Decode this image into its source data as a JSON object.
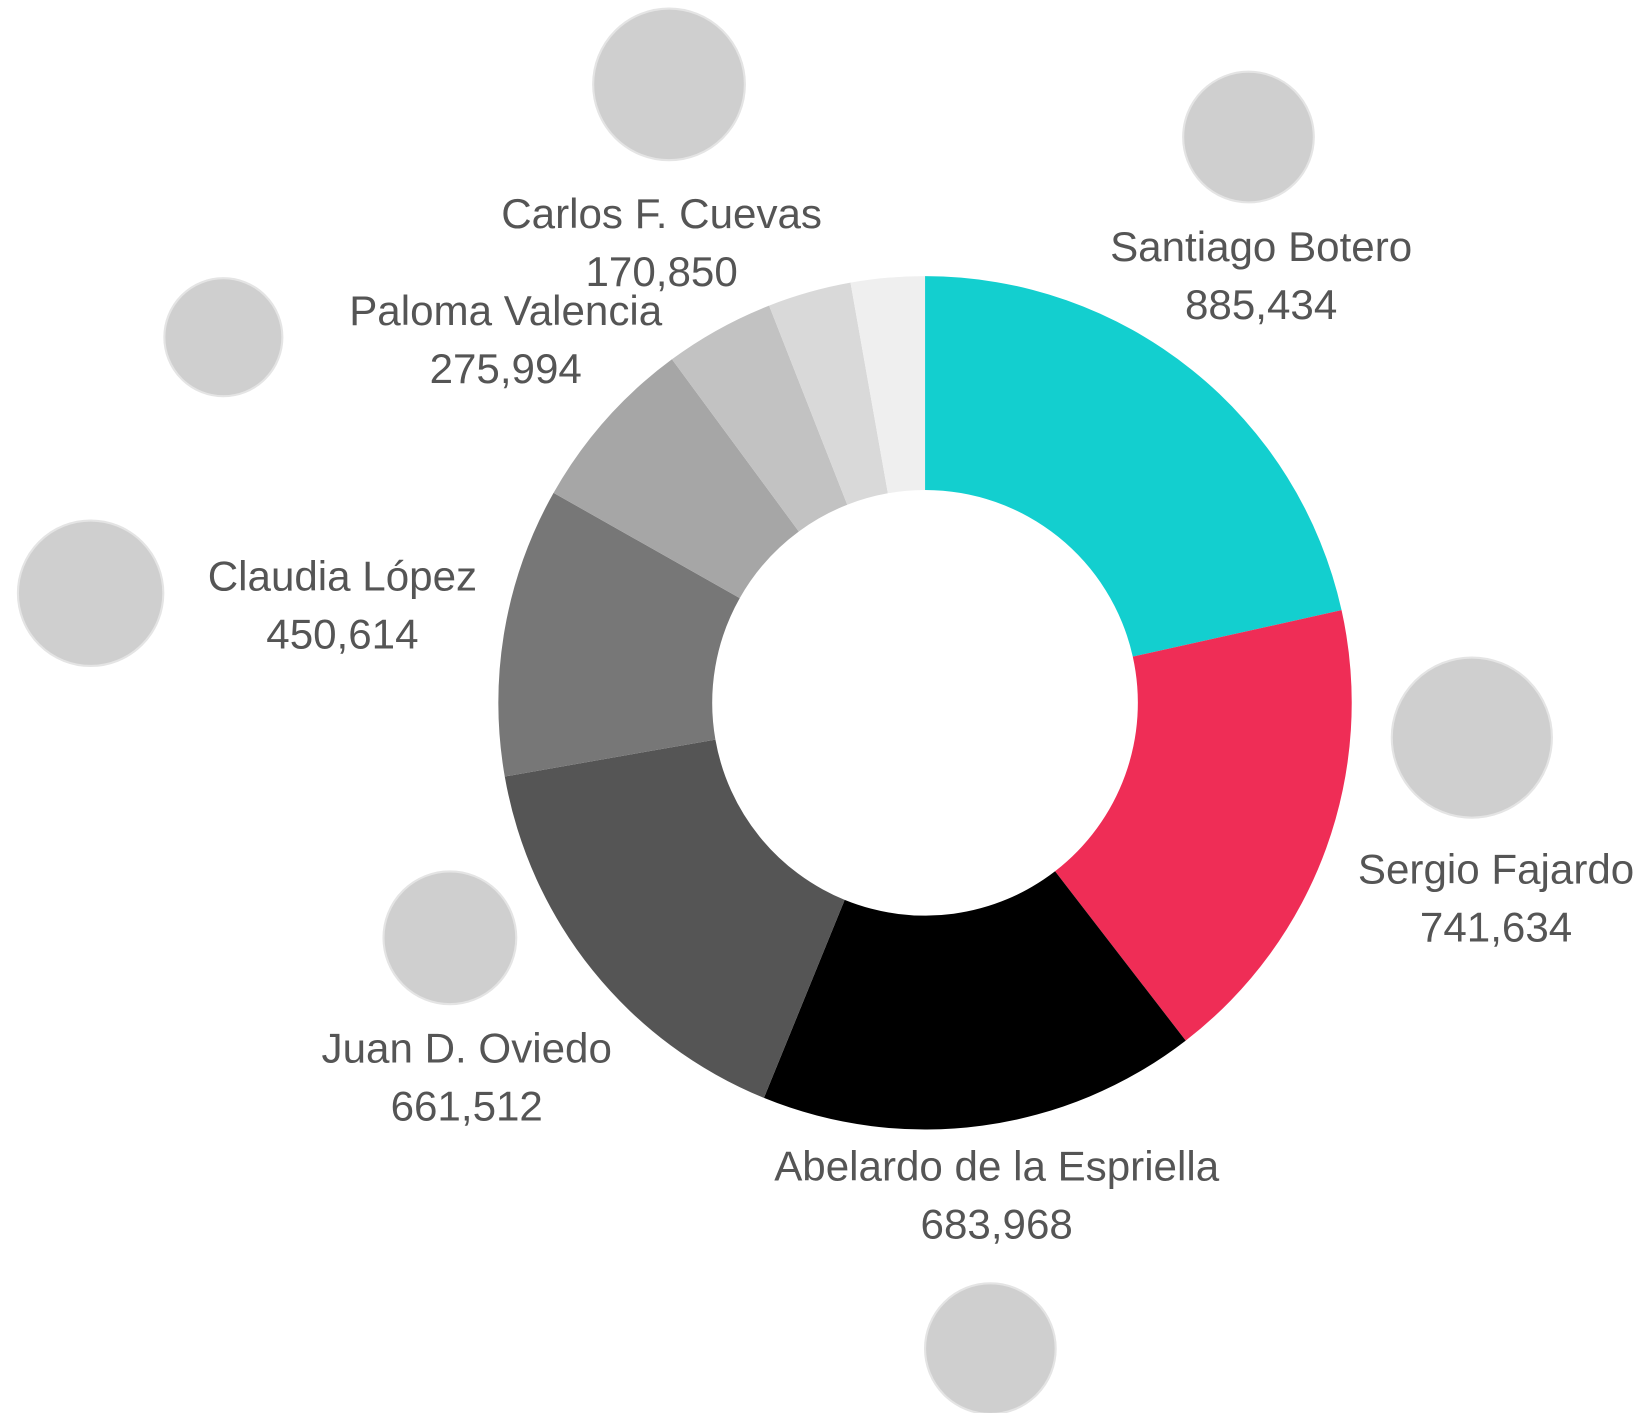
{
  "chart_data": {
    "type": "pie",
    "categories": [
      "Santiago Botero",
      "Sergio Fajardo",
      "Abelardo de la Espriella",
      "Juan D. Oviedo",
      "Claudia López",
      "Paloma Valencia",
      "Carlos F. Cuevas",
      null,
      null
    ],
    "values": [
      885434,
      741634,
      683968,
      661512,
      450614,
      275994,
      170850,
      130000,
      115000
    ],
    "value_labels": [
      "885,434",
      "741,634",
      "683,968",
      "661,512",
      "450,614",
      "275,994",
      "170,850",
      null,
      null
    ],
    "colors": [
      "#13cfcf",
      "#ef2d56",
      "#000000",
      "#555555",
      "#777777",
      "#a6a6a6",
      "#c2c2c2",
      "#d9d9d9",
      "#efefef"
    ]
  }
}
